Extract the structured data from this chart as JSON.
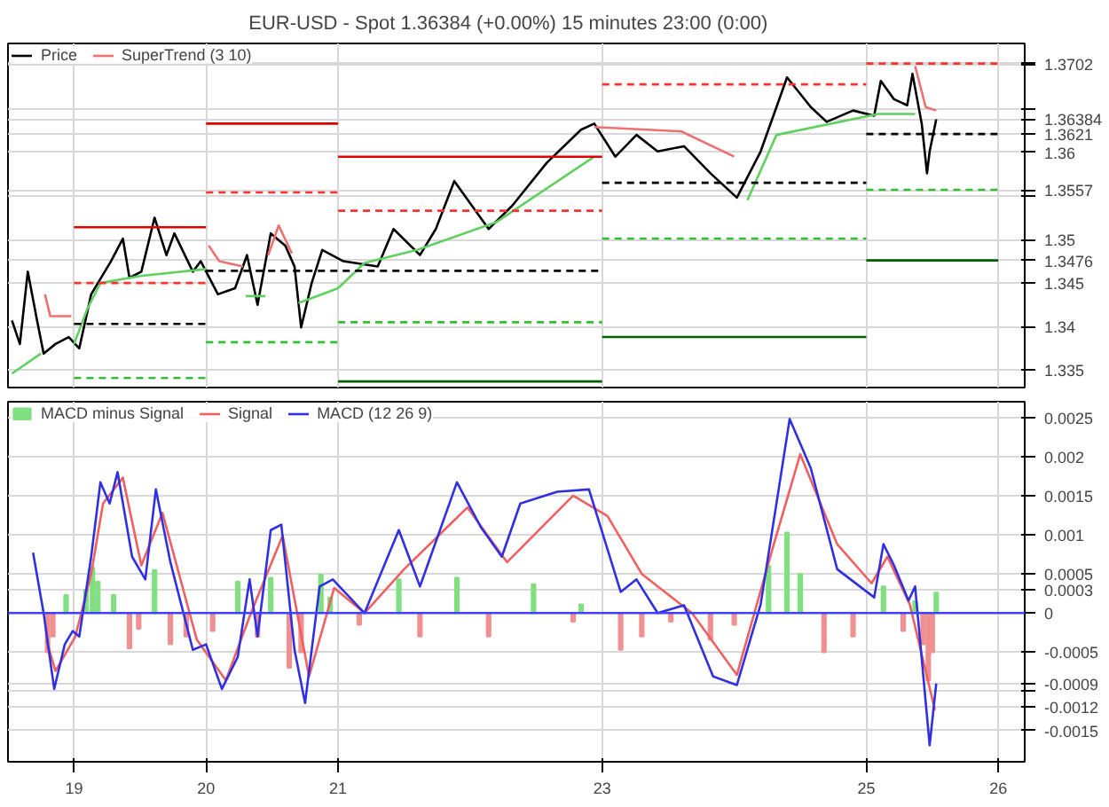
{
  "chart_data": [
    {
      "type": "line",
      "title": "EUR-USD - Spot  1.36384 (+0.00%)  15 minutes  23:00 (0:00)",
      "xlim": [
        18.5,
        26.2
      ],
      "xticks": [
        19,
        20,
        21,
        23,
        25,
        26
      ],
      "ylim": [
        1.333,
        1.3725
      ],
      "yticks": [
        1.335,
        1.34,
        1.345,
        1.3476,
        1.35,
        {
          "value": 1.355,
          "label": null
        },
        1.3557,
        1.36,
        1.3621,
        1.36384,
        {
          "value": 1.365,
          "label": null
        },
        {
          "value": 1.37,
          "label": null
        },
        1.3702
      ],
      "tick_labels": "y",
      "grid": true,
      "legend": "top left",
      "series": [
        {
          "name": "Price",
          "color": "#000000",
          "x": [
            18.53,
            18.59,
            18.65,
            18.72,
            18.77,
            18.86,
            18.96,
            19.04,
            19.13,
            19.28,
            19.37,
            19.42,
            19.51,
            19.61,
            19.7,
            19.76,
            19.9,
            19.96,
            20.09,
            20.22,
            20.31,
            20.39,
            20.49,
            20.6,
            20.67,
            20.72,
            20.8,
            20.88,
            21.04,
            21.3,
            21.42,
            21.62,
            21.74,
            21.88,
            22.14,
            22.32,
            22.58,
            22.84,
            22.94,
            23.1,
            23.26,
            23.42,
            23.62,
            23.82,
            24.02,
            24.2,
            24.32,
            24.4,
            24.58,
            24.7,
            24.9,
            25.06,
            25.11,
            25.21,
            25.31,
            25.35,
            25.42,
            25.46,
            25.48,
            25.53
          ],
          "values": [
            1.3407,
            1.338,
            1.3463,
            1.3407,
            1.3369,
            1.338,
            1.3388,
            1.3375,
            1.3437,
            1.3475,
            1.3501,
            1.3456,
            1.3463,
            1.3525,
            1.3482,
            1.3507,
            1.3463,
            1.3475,
            1.3437,
            1.3444,
            1.3482,
            1.3425,
            1.3507,
            1.3493,
            1.3469,
            1.3399,
            1.345,
            1.3488,
            1.3475,
            1.3469,
            1.3512,
            1.3482,
            1.3512,
            1.3567,
            1.3512,
            1.3539,
            1.3588,
            1.3626,
            1.3633,
            1.3595,
            1.362,
            1.3601,
            1.3607,
            1.3576,
            1.3548,
            1.3601,
            1.3652,
            1.3686,
            1.3652,
            1.3635,
            1.3648,
            1.3642,
            1.3682,
            1.3661,
            1.3654,
            1.369,
            1.3633,
            1.3576,
            1.3601,
            1.3638
          ]
        },
        {
          "name": "SuperTrend (3 10)",
          "color": "#f07070",
          "x": [
            18.78,
            18.82,
            18.98,
            19.0,
            20.02,
            20.1,
            20.28,
            20.3,
            20.47,
            20.55,
            20.65,
            20.7,
            22.94,
            23.6,
            24.0,
            24.1,
            25.37,
            25.45,
            25.53
          ],
          "values": [
            1.3437,
            1.3412,
            1.3412,
            null,
            1.3493,
            1.3475,
            1.3469,
            null,
            1.3482,
            1.3516,
            1.3484,
            null,
            1.3629,
            1.3624,
            1.3595,
            null,
            1.3699,
            1.3652,
            1.3648
          ]
        },
        {
          "color": "#60d060",
          "x": [
            18.53,
            18.75,
            18.78,
            19.0,
            19.1,
            19.2,
            19.5,
            20.0,
            20.02,
            20.3,
            20.45,
            20.47,
            20.7,
            21.0,
            21.2,
            21.6,
            22.2,
            22.94,
            22.98,
            24.1,
            24.32,
            25.09,
            25.37
          ],
          "values": [
            1.3346,
            1.3369,
            null,
            1.338,
            1.342,
            1.345,
            1.3458,
            1.3466,
            null,
            1.3435,
            1.3435,
            null,
            1.3427,
            1.3444,
            1.3473,
            1.3488,
            1.352,
            1.3595,
            null,
            1.3545,
            1.362,
            1.3644,
            1.3644
          ]
        },
        {
          "color": "#e00000",
          "line_style": "solid",
          "x": [
            19,
            20
          ],
          "values": [
            1.3514,
            1.3514
          ]
        },
        {
          "color": "#e00000",
          "line_style": "solid",
          "x": [
            20,
            21
          ],
          "values": [
            1.3633,
            1.3633
          ]
        },
        {
          "color": "#e00000",
          "line_style": "solid",
          "x": [
            21,
            23
          ],
          "values": [
            1.3595,
            1.3595
          ]
        },
        {
          "color": "#ff3030",
          "line_style": "dashed",
          "x": [
            19,
            20
          ],
          "values": [
            1.345,
            1.345
          ]
        },
        {
          "color": "#ff3030",
          "line_style": "dashed",
          "x": [
            20,
            21
          ],
          "values": [
            1.3554,
            1.3554
          ]
        },
        {
          "color": "#ff3030",
          "line_style": "dashed",
          "x": [
            21,
            23
          ],
          "values": [
            1.3533,
            1.3533
          ]
        },
        {
          "color": "#ff3030",
          "line_style": "dashed",
          "x": [
            23,
            25
          ],
          "values": [
            1.3678,
            1.3678
          ]
        },
        {
          "color": "#ff3030",
          "line_style": "dashed",
          "x": [
            25,
            26
          ],
          "values": [
            1.3702,
            1.3702
          ]
        },
        {
          "color": "#000000",
          "line_style": "dashed",
          "x": [
            19,
            20
          ],
          "values": [
            1.3403,
            1.3403
          ]
        },
        {
          "color": "#000000",
          "line_style": "dashed",
          "x": [
            20,
            21,
            23
          ],
          "values": [
            1.3464,
            1.3464,
            1.3464
          ]
        },
        {
          "color": "#000000",
          "line_style": "dashed",
          "x": [
            23,
            25
          ],
          "values": [
            1.3565,
            1.3565
          ]
        },
        {
          "color": "#000000",
          "line_style": "dashed",
          "x": [
            25,
            26
          ],
          "values": [
            1.3621,
            1.3621
          ]
        },
        {
          "color": "#30c030",
          "line_style": "dashed",
          "x": [
            19,
            20
          ],
          "values": [
            1.3341,
            1.3341
          ]
        },
        {
          "color": "#30c030",
          "line_style": "dashed",
          "x": [
            20,
            21
          ],
          "values": [
            1.3382,
            1.3382
          ]
        },
        {
          "color": "#30c030",
          "line_style": "dashed",
          "x": [
            21,
            23
          ],
          "values": [
            1.3405,
            1.3405
          ]
        },
        {
          "color": "#30c030",
          "line_style": "dashed",
          "x": [
            23,
            25
          ],
          "values": [
            1.3501,
            1.3501
          ]
        },
        {
          "color": "#30c030",
          "line_style": "dashed",
          "x": [
            25,
            26
          ],
          "values": [
            1.3557,
            1.3557
          ]
        },
        {
          "color": "#006000",
          "line_style": "solid",
          "x": [
            21,
            23
          ],
          "values": [
            1.3337,
            1.3337
          ]
        },
        {
          "color": "#006000",
          "line_style": "solid",
          "x": [
            23,
            25
          ],
          "values": [
            1.3388,
            1.3388
          ]
        },
        {
          "color": "#006000",
          "line_style": "solid",
          "x": [
            25,
            26
          ],
          "values": [
            1.3476,
            1.3476
          ]
        }
      ]
    },
    {
      "type": "line",
      "xlim": [
        18.5,
        26.2
      ],
      "xticks": [
        19,
        20,
        21,
        23,
        25,
        26
      ],
      "ylim": [
        -0.0019,
        0.0027
      ],
      "yticks": [
        0.0025,
        0.002,
        0.0015,
        0.001,
        0.0005,
        0.0003,
        0,
        -0.0005,
        -0.0009,
        {
          "value": -0.001,
          "label": null
        },
        -0.0012,
        -0.0015
      ],
      "grid": true,
      "legend": "top left",
      "ref_lines": [
        {
          "axis": "y",
          "value": 0,
          "color": "#4040ff"
        }
      ],
      "series": [
        {
          "name": "MACD minus Signal",
          "type": "bar",
          "color": "#80e080",
          "x": [
            18.8,
            18.84,
            18.94,
            19.09,
            19.14,
            19.18,
            19.3,
            19.42,
            19.49,
            19.61,
            19.73,
            19.85,
            20.05,
            20.24,
            20.39,
            20.49,
            20.63,
            20.72,
            20.87,
            20.94,
            21.16,
            21.46,
            21.62,
            21.9,
            22.14,
            22.48,
            22.78,
            22.84,
            23.14,
            23.3,
            23.52,
            23.82,
            24.0,
            24.26,
            24.4,
            24.5,
            24.68,
            24.9,
            25.13,
            25.28,
            25.37,
            25.43,
            25.47,
            25.5,
            25.53
          ],
          "values": [
            -0.0005,
            -0.0003,
            0.00023,
            0.0003,
            0.00058,
            0.0004,
            0.00023,
            -0.00045,
            -0.0002,
            0.00055,
            -0.0004,
            -0.0003,
            -0.00023,
            0.0004,
            -0.0003,
            0.00045,
            -0.0007,
            -0.0005,
            0.00049,
            0.0002,
            -0.00015,
            0.00043,
            -0.0003,
            0.00045,
            -0.0003,
            0.00037,
            -0.00011,
            0.00011,
            -0.00047,
            -0.0003,
            -0.00011,
            -0.00034,
            -0.00015,
            0.0006,
            0.00103,
            0.0005,
            -0.0005,
            -0.0003,
            0.00034,
            -0.00023,
            0.00015,
            -0.0004,
            -0.00086,
            -0.0005,
            0.00026
          ],
          "colors": [
            "#f09090",
            "#f09090",
            "#80e080",
            "#80e080",
            "#80e080",
            "#80e080",
            "#80e080",
            "#f09090",
            "#f09090",
            "#80e080",
            "#f09090",
            "#f09090",
            "#f09090",
            "#80e080",
            "#f09090",
            "#80e080",
            "#f09090",
            "#f09090",
            "#80e080",
            "#80e080",
            "#f09090",
            "#80e080",
            "#f09090",
            "#80e080",
            "#f09090",
            "#80e080",
            "#f09090",
            "#80e080",
            "#f09090",
            "#f09090",
            "#f09090",
            "#f09090",
            "#f09090",
            "#80e080",
            "#80e080",
            "#80e080",
            "#f09090",
            "#f09090",
            "#80e080",
            "#f09090",
            "#80e080",
            "#f09090",
            "#f09090",
            "#f09090",
            "#80e080"
          ]
        },
        {
          "name": "Signal",
          "color": "#f06060",
          "x": [
            18.79,
            18.86,
            19.01,
            19.13,
            19.22,
            19.37,
            19.51,
            19.67,
            19.76,
            19.93,
            20.15,
            20.34,
            20.58,
            20.78,
            20.97,
            21.2,
            21.5,
            21.98,
            22.28,
            22.78,
            23.04,
            23.3,
            23.68,
            24.02,
            24.3,
            24.5,
            24.78,
            25.04,
            25.16,
            25.33,
            25.52
          ],
          "values": [
            -0.00034,
            -0.00074,
            -0.0003,
            0.0005,
            0.0014,
            0.00173,
            0.00061,
            0.00128,
            0.00072,
            -0.00034,
            -0.00086,
            0,
            0.00099,
            -0.00081,
            0.00032,
            0,
            0.00056,
            0.00135,
            0.00065,
            0.0015,
            0.00124,
            0.0005,
            0,
            -0.00079,
            0.00088,
            0.00203,
            0.00088,
            0.00038,
            0.00072,
            0.00011,
            -0.00124
          ]
        },
        {
          "name": "MACD (12 26 9)",
          "color": "#3030e0",
          "x": [
            18.69,
            18.77,
            18.85,
            18.93,
            18.99,
            19.04,
            19.13,
            19.2,
            19.27,
            19.33,
            19.44,
            19.54,
            19.62,
            19.73,
            19.9,
            20.0,
            20.12,
            20.24,
            20.33,
            20.39,
            20.49,
            20.57,
            20.67,
            20.75,
            20.86,
            20.96,
            21.2,
            21.46,
            21.62,
            21.9,
            22.08,
            22.24,
            22.38,
            22.66,
            22.9,
            23.14,
            23.26,
            23.42,
            23.62,
            23.84,
            24.02,
            24.2,
            24.42,
            24.58,
            24.78,
            25.06,
            25.13,
            25.21,
            25.32,
            25.37,
            25.48,
            25.53
          ],
          "values": [
            0.00077,
            0,
            -0.00097,
            -0.0004,
            -0.00023,
            -0.0003,
            0.00072,
            0.00167,
            0.0014,
            0.0018,
            0.00072,
            0.00043,
            0.00158,
            0.00065,
            -0.00047,
            -0.0004,
            -0.00097,
            -0.00056,
            0.00043,
            -0.0003,
            0.00106,
            0.00113,
            -0.00047,
            -0.00115,
            0.00034,
            0.00043,
            0,
            0.00106,
            0.00034,
            0.00167,
            0.0011,
            0.00072,
            0.0014,
            0.00155,
            0.00158,
            0.00027,
            0.00043,
            0,
            0.0001,
            -0.00081,
            -0.00092,
            0.00011,
            0.00248,
            0.00185,
            0.00056,
            0.0002,
            0.00088,
            0.00061,
            0.00016,
            0.00034,
            -0.00169,
            -0.0009
          ]
        }
      ]
    }
  ]
}
